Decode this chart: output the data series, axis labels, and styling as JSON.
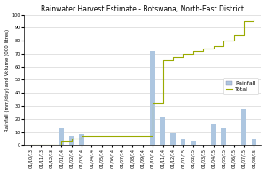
{
  "title": "Rainwater Harvest Estimate - Botswana, North-East District",
  "ylabel": "Rainfall (mm/day) and Volume (000 litres)",
  "ylim": [
    0,
    100
  ],
  "yticks": [
    0,
    10,
    20,
    30,
    40,
    50,
    60,
    70,
    80,
    90,
    100
  ],
  "bar_color": "#adc6e0",
  "line_color": "#9aaa00",
  "background_color": "#ffffff",
  "grid_color": "#cccccc",
  "legend_labels": [
    "Rainfall",
    "Total"
  ],
  "dates": [
    "01/10/13",
    "01/11/13",
    "01/12/13",
    "01/01/14",
    "01/02/14",
    "01/03/14",
    "01/04/14",
    "01/05/14",
    "01/06/14",
    "01/07/14",
    "01/08/14",
    "01/09/14",
    "01/10/14",
    "01/11/14",
    "01/12/14",
    "01/01/15",
    "01/02/15",
    "01/03/15",
    "01/04/15",
    "01/05/15",
    "01/06/15",
    "01/07/15",
    "01/08/15"
  ],
  "rainfall": [
    0,
    0,
    0,
    13,
    7,
    8,
    0,
    0,
    0,
    0,
    0,
    0,
    72,
    21,
    9,
    5,
    3,
    0,
    16,
    13,
    0,
    28,
    5
  ],
  "cumulative": [
    0,
    0,
    0,
    3,
    5,
    7,
    7,
    7,
    7,
    7,
    7,
    7,
    32,
    65,
    67,
    70,
    72,
    74,
    76,
    80,
    84,
    95,
    96
  ],
  "title_fontsize": 5.5,
  "axis_fontsize": 4.0,
  "tick_fontsize": 3.5,
  "legend_fontsize": 4.5
}
